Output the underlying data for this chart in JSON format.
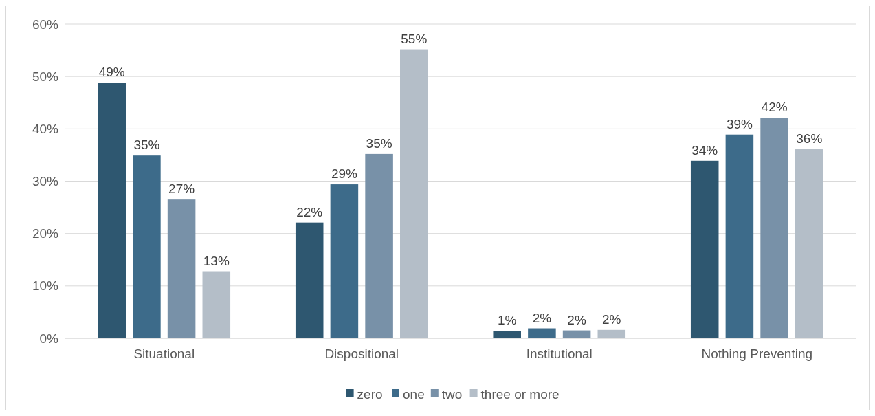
{
  "chart_data": {
    "type": "bar",
    "categories": [
      "Situational",
      "Dispositional",
      "Institutional",
      "Nothing Preventing"
    ],
    "series": [
      {
        "name": "zero",
        "color": "#2e5770",
        "values": [
          48.8,
          22.1,
          1.4,
          33.9
        ],
        "value_labels": [
          "49%",
          "22%",
          "1%",
          "34%"
        ]
      },
      {
        "name": "one",
        "color": "#3d6b8a",
        "values": [
          34.9,
          29.4,
          1.9,
          38.9
        ],
        "value_labels": [
          "35%",
          "29%",
          "2%",
          "39%"
        ]
      },
      {
        "name": "two",
        "color": "#7891a8",
        "values": [
          26.5,
          35.2,
          1.5,
          42.1
        ],
        "value_labels": [
          "27%",
          "35%",
          "2%",
          "42%"
        ]
      },
      {
        "name": "three or more",
        "color": "#b4bec8",
        "values": [
          12.8,
          55.2,
          1.6,
          36.1
        ],
        "value_labels": [
          "13%",
          "55%",
          "2%",
          "36%"
        ]
      }
    ],
    "ylim": [
      0,
      60
    ],
    "yticks": [
      {
        "value": 0,
        "label": "0%"
      },
      {
        "value": 10,
        "label": "10%"
      },
      {
        "value": 20,
        "label": "20%"
      },
      {
        "value": 30,
        "label": "30%"
      },
      {
        "value": 40,
        "label": "40%"
      },
      {
        "value": 50,
        "label": "50%"
      },
      {
        "value": 60,
        "label": "60%"
      }
    ],
    "grid": "y",
    "legend": "bottom"
  }
}
